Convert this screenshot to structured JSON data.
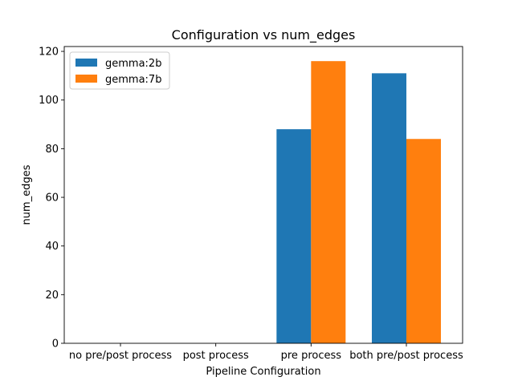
{
  "chart_data": {
    "type": "bar",
    "title": "Configuration vs num_edges",
    "xlabel": "Pipeline Configuration",
    "ylabel": "num_edges",
    "categories": [
      "no pre/post process",
      "post process",
      "pre process",
      "both pre/post process"
    ],
    "series": [
      {
        "name": "gemma:2b",
        "values": [
          0,
          0,
          88,
          111
        ],
        "color": "#1f77b4"
      },
      {
        "name": "gemma:7b",
        "values": [
          0,
          0,
          116,
          84
        ],
        "color": "#ff7f0e"
      }
    ],
    "ylim": [
      0,
      122
    ],
    "yticks": [
      0,
      20,
      40,
      60,
      80,
      100,
      120
    ],
    "grid": false,
    "legend_position": "top-left"
  }
}
